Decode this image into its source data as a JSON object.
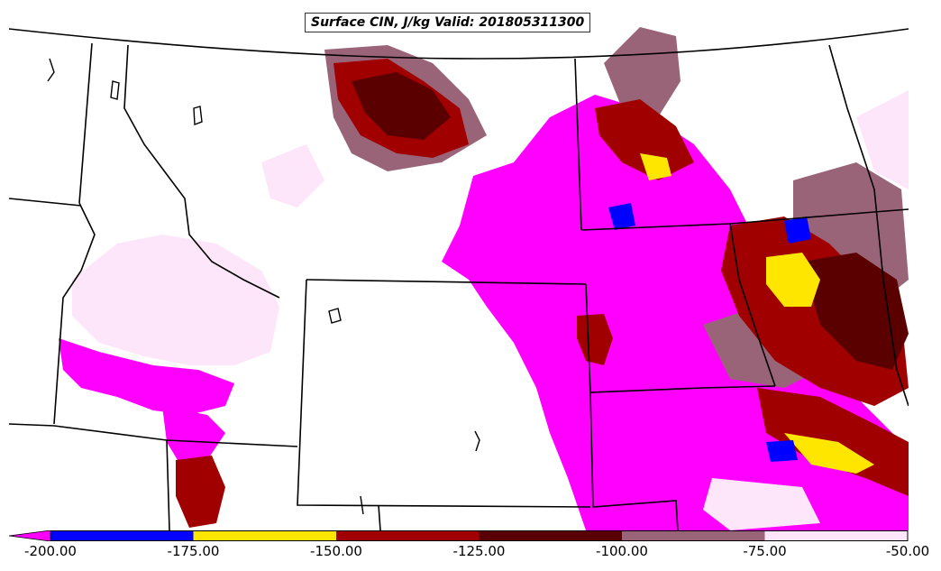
{
  "title": "Surface CIN, J/kg Valid: 201805311300",
  "colorbar": {
    "ticks": [
      "-200.00",
      "-175.00",
      "-150.00",
      "-125.00",
      "-100.00",
      "-75.00",
      "-50.00"
    ],
    "bins": [
      {
        "min": -200,
        "max": -175,
        "color": "#0000ff"
      },
      {
        "min": -175,
        "max": -150,
        "color": "#ffe600"
      },
      {
        "min": -150,
        "max": -125,
        "color": "#a00000"
      },
      {
        "min": -125,
        "max": -100,
        "color": "#5a0000"
      },
      {
        "min": -100,
        "max": -75,
        "color": "#9a6478"
      },
      {
        "min": -75,
        "max": -50,
        "color": "#fde6fa"
      }
    ],
    "under_color": "#ff00ff"
  },
  "colors": {
    "below_min": "#ff00ff",
    "background": "#ffffff",
    "borders": "#000000"
  }
}
